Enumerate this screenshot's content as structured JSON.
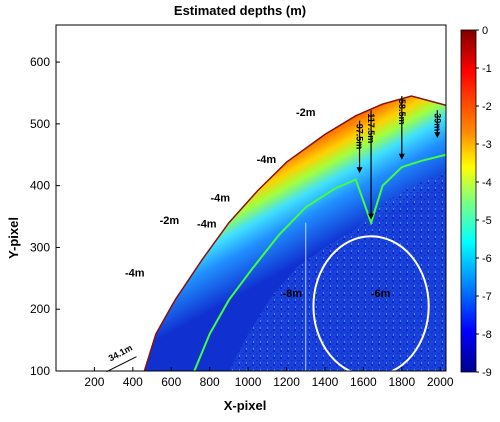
{
  "chart_data": {
    "type": "heatmap",
    "title": "Estimated depths (m)",
    "xlabel": "X-pixel",
    "ylabel": "Y-pixel",
    "xlim": [
      0,
      2030
    ],
    "ylim": [
      100,
      660
    ],
    "xticks": [
      "200",
      "400",
      "600",
      "800",
      "1000",
      "1200",
      "1400",
      "1600",
      "1800",
      "2000"
    ],
    "xtick_values": [
      200,
      400,
      600,
      800,
      1000,
      1200,
      1400,
      1600,
      1800,
      2000
    ],
    "yticks": [
      "100",
      "200",
      "300",
      "400",
      "500",
      "600"
    ],
    "ytick_values": [
      100,
      200,
      300,
      400,
      500,
      600
    ],
    "colorbar": {
      "min": -9,
      "max": 0,
      "ticks": [
        "0",
        "-1",
        "-2",
        "-3",
        "-4",
        "-5",
        "-6",
        "-7",
        "-8",
        "-9"
      ],
      "tick_values": [
        0,
        -1,
        -2,
        -3,
        -4,
        -5,
        -6,
        -7,
        -8,
        -9
      ],
      "colormap": "jet",
      "reversed": true
    },
    "depth_labels": [
      {
        "text": "-2m",
        "x": 1300,
        "y": 513
      },
      {
        "text": "-4m",
        "x": 1095,
        "y": 437
      },
      {
        "text": "-4m",
        "x": 855,
        "y": 374
      },
      {
        "text": "-2m",
        "x": 590,
        "y": 338
      },
      {
        "text": "-4m",
        "x": 785,
        "y": 332
      },
      {
        "text": "-4m",
        "x": 410,
        "y": 253
      },
      {
        "text": "-8m",
        "x": 1230,
        "y": 220
      },
      {
        "text": "-6m",
        "x": 1690,
        "y": 220
      }
    ],
    "distance_markers": [
      {
        "text": "97.5m",
        "x": 1580,
        "y_top": 505,
        "y_bottom": 420
      },
      {
        "text": "117.5m",
        "x": 1640,
        "y_top": 522,
        "y_bottom": 345
      },
      {
        "text": "58.5m",
        "x": 1800,
        "y_top": 545,
        "y_bottom": 442
      },
      {
        "text": "39m",
        "x": 1985,
        "y_top": 522,
        "y_bottom": 477
      },
      {
        "text": "34.1m",
        "x": 440,
        "y": 120
      }
    ],
    "highlight": {
      "shape": "ellipse",
      "cx": 1640,
      "cy": 205,
      "rx": 300,
      "ry": 113,
      "color": "#ffffff"
    },
    "colors": {
      "frame": "#000000",
      "ellipse": "#ffffff"
    }
  }
}
